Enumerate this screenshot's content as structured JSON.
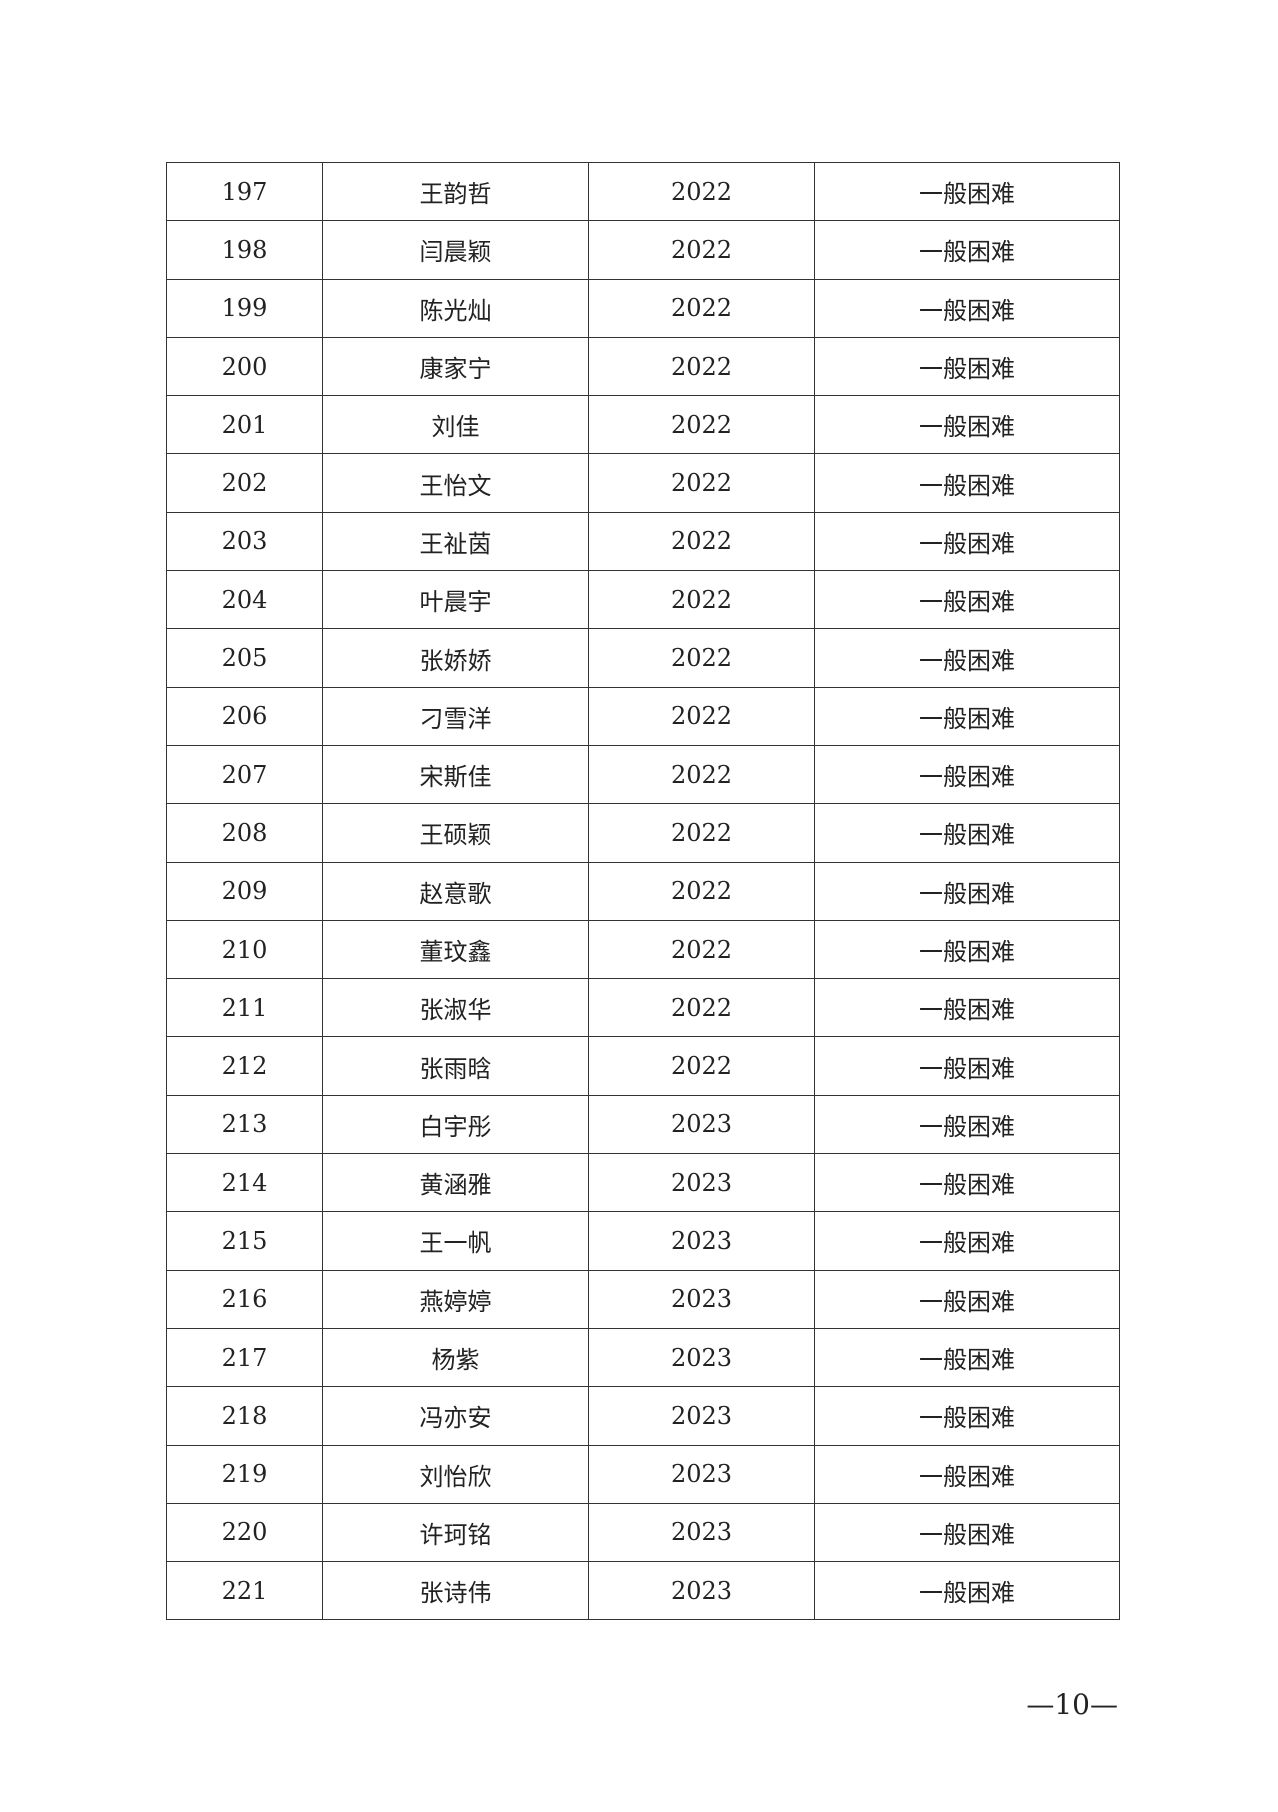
{
  "rows": [
    [
      "197",
      "王韵哲",
      "2022",
      "一般困难"
    ],
    [
      "198",
      "闫晨颖",
      "2022",
      "一般困难"
    ],
    [
      "199",
      "陈光灿",
      "2022",
      "一般困难"
    ],
    [
      "200",
      "康家宁",
      "2022",
      "一般困难"
    ],
    [
      "201",
      "刘佳",
      "2022",
      "一般困难"
    ],
    [
      "202",
      "王怡文",
      "2022",
      "一般困难"
    ],
    [
      "203",
      "王祉茵",
      "2022",
      "一般困难"
    ],
    [
      "204",
      "叶晨宇",
      "2022",
      "一般困难"
    ],
    [
      "205",
      "张娇娇",
      "2022",
      "一般困难"
    ],
    [
      "206",
      "刁雪洋",
      "2022",
      "一般困难"
    ],
    [
      "207",
      "宋斯佳",
      "2022",
      "一般困难"
    ],
    [
      "208",
      "王硕颖",
      "2022",
      "一般困难"
    ],
    [
      "209",
      "赵意歌",
      "2022",
      "一般困难"
    ],
    [
      "210",
      "董玟鑫",
      "2022",
      "一般困难"
    ],
    [
      "211",
      "张淑华",
      "2022",
      "一般困难"
    ],
    [
      "212",
      "张雨晗",
      "2022",
      "一般困难"
    ],
    [
      "213",
      "白宇彤",
      "2023",
      "一般困难"
    ],
    [
      "214",
      "黄涵雅",
      "2023",
      "一般困难"
    ],
    [
      "215",
      "王一帆",
      "2023",
      "一般困难"
    ],
    [
      "216",
      "燕婷婷",
      "2023",
      "一般困难"
    ],
    [
      "217",
      "杨紫",
      "2023",
      "一般困难"
    ],
    [
      "218",
      "冯亦安",
      "2023",
      "一般困难"
    ],
    [
      "219",
      "刘怡欣",
      "2023",
      "一般困难"
    ],
    [
      "220",
      "许珂铭",
      "2023",
      "一般困难"
    ],
    [
      "221",
      "张诗伟",
      "2023",
      "一般困难"
    ]
  ],
  "page_number": "—10—"
}
